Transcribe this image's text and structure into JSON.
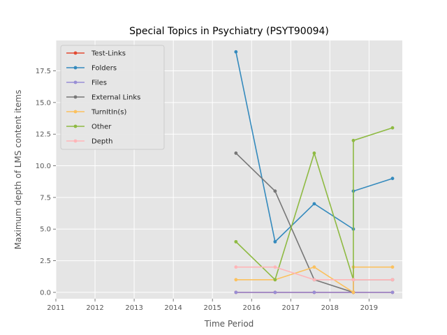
{
  "chart_data": {
    "type": "line",
    "title": "Special Topics in Psychiatry (PSYT90094)",
    "xlabel": "Time Period",
    "ylabel": "Maximum depth of LMS content items",
    "xlim": [
      2011,
      2019.85
    ],
    "ylim": [
      -0.5,
      19.9
    ],
    "xticks": [
      2011,
      2012,
      2013,
      2014,
      2015,
      2016,
      2017,
      2018,
      2019
    ],
    "yticks": [
      0.0,
      2.5,
      5.0,
      7.5,
      10.0,
      12.5,
      15.0,
      17.5
    ],
    "ytick_labels": [
      "0.0",
      "2.5",
      "5.0",
      "7.5",
      "10.0",
      "12.5",
      "15.0",
      "17.5"
    ],
    "grid": true,
    "legend_position": "upper-left",
    "series": [
      {
        "name": "Test-Links",
        "color": "#E24A33",
        "x": [
          2015.6,
          2016.6,
          2017.6,
          2018.6,
          2018.6,
          2019.6
        ],
        "y": [
          0,
          0,
          0,
          0,
          0,
          0
        ]
      },
      {
        "name": "Folders",
        "color": "#348ABD",
        "x": [
          2015.6,
          2016.6,
          2017.6,
          2018.6,
          2018.6,
          2019.6
        ],
        "y": [
          19,
          4,
          7,
          5,
          8,
          9
        ]
      },
      {
        "name": "Files",
        "color": "#988ED5",
        "x": [
          2015.6,
          2016.6,
          2017.6,
          2018.6,
          2018.6,
          2019.6
        ],
        "y": [
          0,
          0,
          0,
          0,
          0,
          0
        ]
      },
      {
        "name": "External Links",
        "color": "#777777",
        "x": [
          2015.6,
          2016.6,
          2017.6,
          2018.6,
          2018.6,
          2019.6
        ],
        "y": [
          11,
          8,
          1,
          0,
          1,
          1
        ]
      },
      {
        "name": "TurnItIn(s)",
        "color": "#FBC15E",
        "x": [
          2015.6,
          2016.6,
          2017.6,
          2018.6,
          2018.6,
          2019.6
        ],
        "y": [
          1,
          1,
          2,
          0,
          2,
          2
        ]
      },
      {
        "name": "Other",
        "color": "#8EBA42",
        "x": [
          2015.6,
          2016.6,
          2017.6,
          2018.6,
          2018.6,
          2019.6
        ],
        "y": [
          4,
          1,
          11,
          1,
          12,
          13
        ]
      },
      {
        "name": "Depth",
        "color": "#FFB5B8",
        "x": [
          2015.6,
          2016.6,
          2017.6,
          2018.6,
          2018.6,
          2019.6
        ],
        "y": [
          2,
          2,
          1,
          1,
          1,
          1
        ]
      }
    ]
  }
}
